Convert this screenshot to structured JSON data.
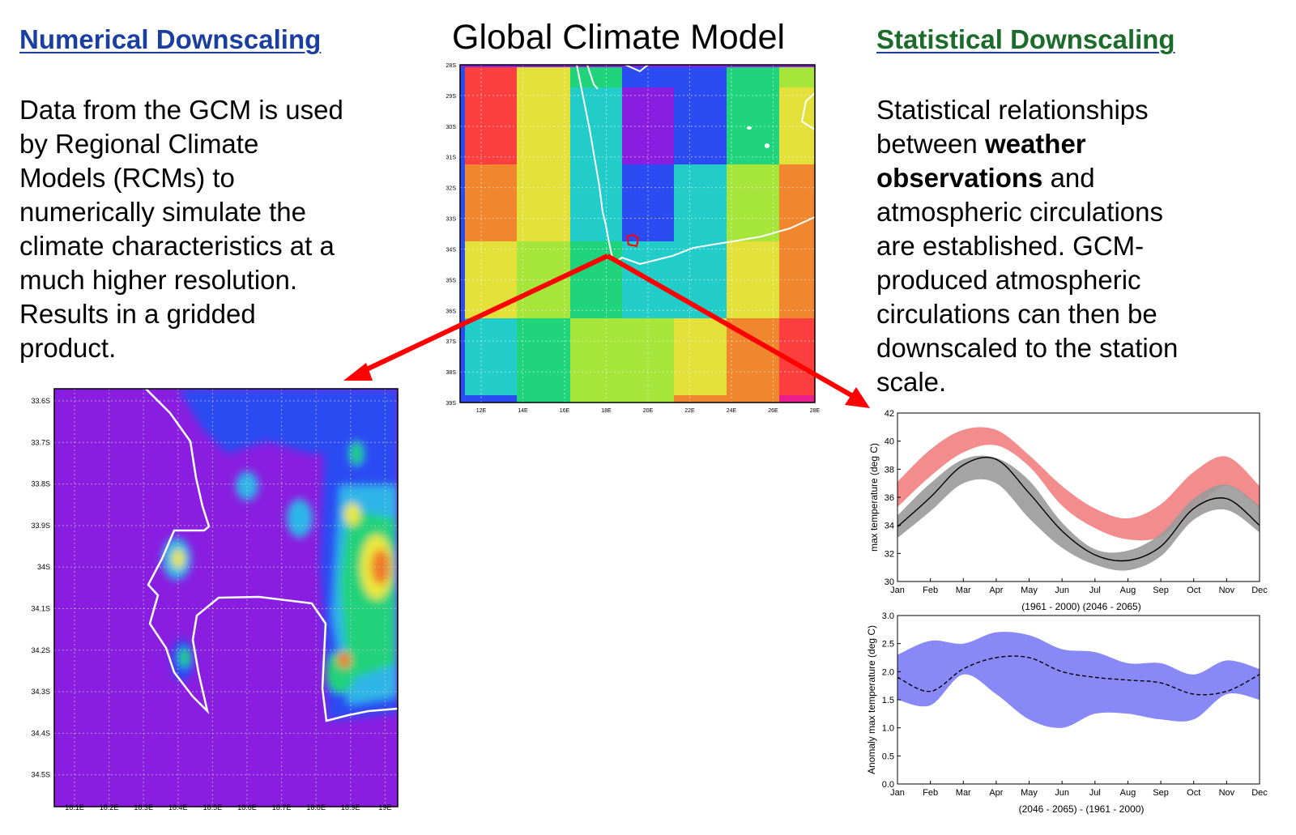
{
  "numerical": {
    "heading": "Numerical Downscaling",
    "lines": [
      "Data from the GCM is used",
      "by Regional Climate",
      "Models (RCMs) to",
      "numerically simulate the",
      "climate characteristics at a",
      "much higher resolution.",
      "Results in a gridded",
      "product."
    ]
  },
  "gcm": {
    "title": "Global Climate Model",
    "lat_ticks": [
      "28S",
      "29S",
      "30S",
      "31S",
      "32S",
      "33S",
      "34S",
      "35S",
      "36S",
      "37S",
      "38S",
      "39S"
    ],
    "lon_ticks": [
      "12E",
      "14E",
      "16E",
      "18E",
      "20E",
      "22E",
      "24E",
      "26E",
      "28E"
    ]
  },
  "statistical": {
    "heading": "Statistical Downscaling",
    "line1": "Statistical relationships",
    "line2_pre": "between ",
    "line2_bold": "weather",
    "line3_bold": "observations",
    "line3_post": " and",
    "line4": "atmospheric circulations",
    "line5": "are established. GCM-",
    "line6": "produced atmospheric",
    "line7": "circulations can then be",
    "line8": "downscaled to the station",
    "line9": "scale."
  },
  "regional_map": {
    "lat_ticks": [
      "33.6S",
      "33.7S",
      "33.8S",
      "33.9S",
      "34S",
      "34.1S",
      "34.2S",
      "34.3S",
      "34.4S",
      "34.5S"
    ],
    "lon_ticks": [
      "18.1E",
      "18.2E",
      "18.3E",
      "18.4E",
      "18.5E",
      "18.6E",
      "18.7E",
      "18.8E",
      "18.9E",
      "19E"
    ]
  },
  "colors": {
    "blue_heading": "#1a3fa0",
    "green_heading": "#1b6b2a",
    "arrow": "#ff0000",
    "coast": "#ffffff",
    "future_band": "#f28080",
    "baseline_band": "#9a9a9a",
    "anomaly_band": "#7b7bf5"
  },
  "chart_data": [
    {
      "type": "area",
      "categories": [
        "Jan",
        "Feb",
        "Mar",
        "Apr",
        "May",
        "Jun",
        "Jul",
        "Aug",
        "Sep",
        "Oct",
        "Nov",
        "Dec"
      ],
      "ylabel": "max temperature (deg C)",
      "xlabel": "(1961 - 2000) (2046 - 2065)",
      "ylim": [
        30,
        42
      ],
      "yticks": [
        "30",
        "32",
        "34",
        "36",
        "38",
        "40",
        "42"
      ],
      "series": [
        {
          "color": "#f28080",
          "lower": [
            35.3,
            37.5,
            39.2,
            39.7,
            38.2,
            35.4,
            33.8,
            33.0,
            33.2,
            35.1,
            36.8,
            35.2
          ],
          "upper": [
            37.1,
            39.4,
            40.8,
            40.8,
            39.0,
            36.8,
            35.2,
            34.5,
            35.5,
            37.8,
            38.9,
            36.8
          ]
        },
        {
          "color": "#9a9a9a",
          "lower": [
            33.1,
            35.0,
            37.0,
            37.0,
            34.5,
            32.4,
            31.2,
            30.8,
            31.8,
            34.4,
            35.1,
            33.5
          ],
          "upper": [
            34.7,
            37.0,
            38.7,
            38.8,
            37.2,
            34.2,
            32.3,
            32.2,
            33.4,
            35.9,
            36.9,
            35.4
          ],
          "mean": [
            33.9,
            36.0,
            38.3,
            38.7,
            36.3,
            33.6,
            31.9,
            31.5,
            32.5,
            35.2,
            35.9,
            34.0
          ]
        }
      ]
    },
    {
      "type": "area",
      "categories": [
        "Jan",
        "Feb",
        "Mar",
        "Apr",
        "May",
        "Jun",
        "Jul",
        "Aug",
        "Sep",
        "Oct",
        "Nov",
        "Dec"
      ],
      "ylabel": "Anomaly max temperature (deg C)",
      "xlabel": "(2046 - 2065) - (1961 - 2000)",
      "ylim": [
        0.0,
        3.0
      ],
      "yticks": [
        "0.0",
        "0.5",
        "1.0",
        "1.5",
        "2.0",
        "2.5",
        "3.0"
      ],
      "series": [
        {
          "color": "#7b7bf5",
          "lower": [
            1.5,
            1.4,
            1.95,
            1.6,
            1.15,
            1.0,
            1.25,
            1.25,
            1.15,
            1.15,
            1.6,
            1.5
          ],
          "upper": [
            2.3,
            2.55,
            2.5,
            2.7,
            2.65,
            2.4,
            2.35,
            2.15,
            2.15,
            1.95,
            2.2,
            2.05
          ],
          "mean": [
            1.9,
            1.65,
            2.05,
            2.25,
            2.25,
            2.0,
            1.9,
            1.85,
            1.8,
            1.6,
            1.65,
            1.95
          ]
        }
      ]
    }
  ]
}
